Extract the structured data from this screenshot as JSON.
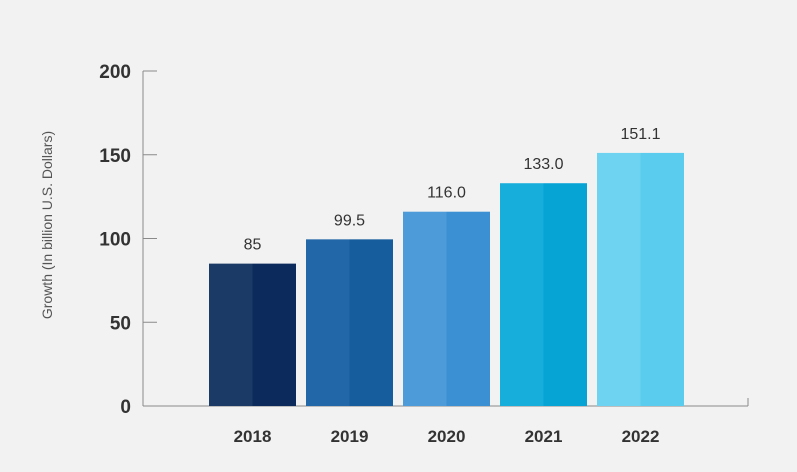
{
  "chart_data": {
    "type": "bar",
    "categories": [
      "2018",
      "2019",
      "2020",
      "2021",
      "2022"
    ],
    "values": [
      85,
      99.5,
      116.0,
      133.0,
      151.1
    ],
    "data_labels": [
      "85",
      "99.5",
      "116.0",
      "133.0",
      "151.1"
    ],
    "title": "",
    "xlabel": "",
    "ylabel": "Growth  (In billion U.S. Dollars)",
    "ylim": [
      0,
      200
    ],
    "yticks": [
      "0",
      "50",
      "100",
      "150",
      "200"
    ],
    "grid": false,
    "legend": "none",
    "bar_colors": [
      {
        "left": "#1b3a66",
        "right": "#0d2a5c"
      },
      {
        "left": "#2268a8",
        "right": "#165d9e"
      },
      {
        "left": "#4e9bd9",
        "right": "#3b8fd3"
      },
      {
        "left": "#17aedb",
        "right": "#06a3d5"
      },
      {
        "left": "#6dd3f0",
        "right": "#5acdee"
      }
    ]
  }
}
